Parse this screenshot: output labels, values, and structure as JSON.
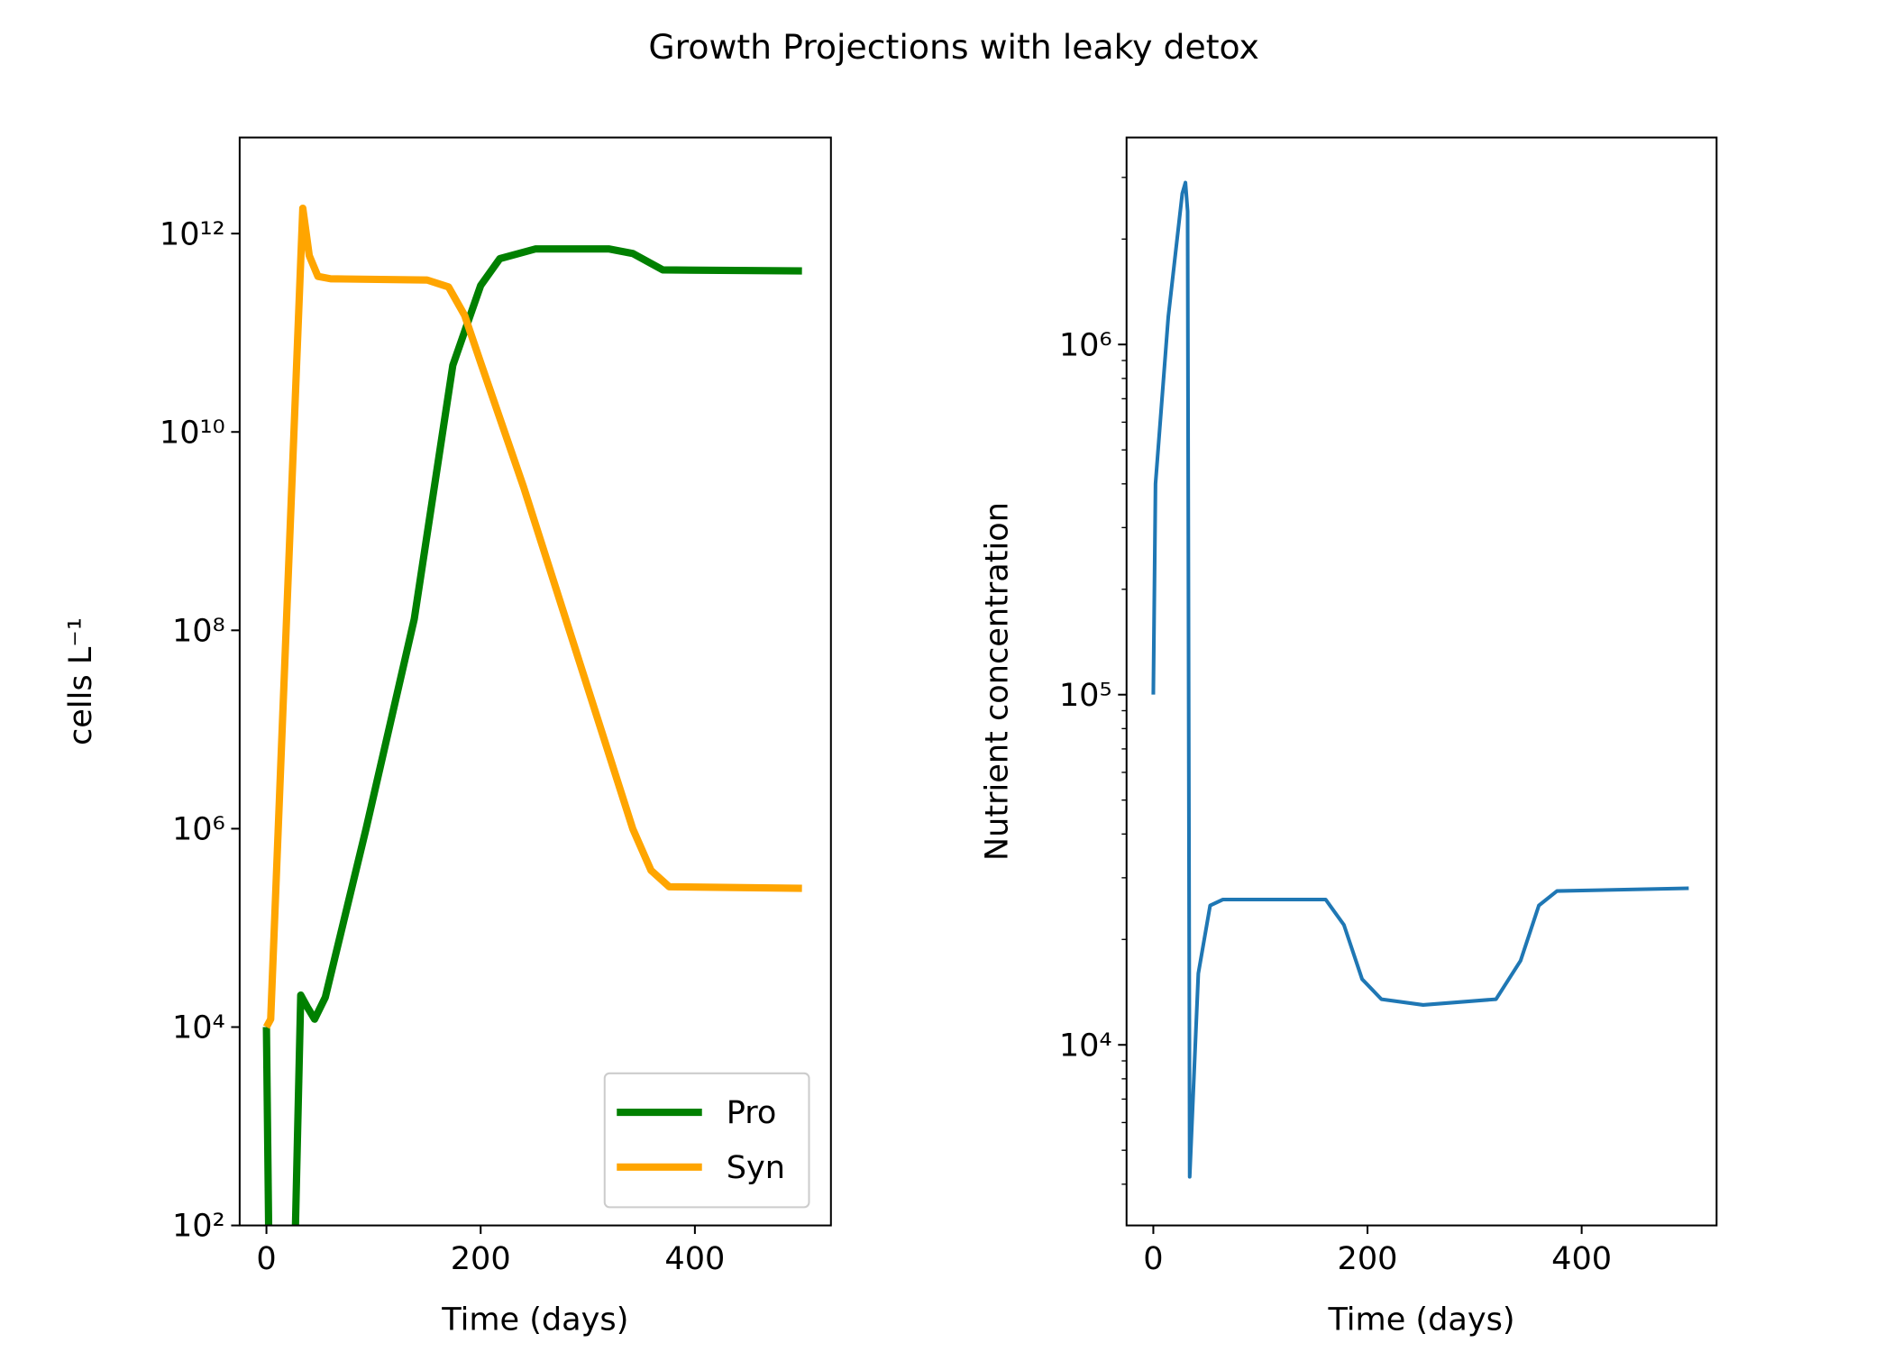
{
  "title": "Growth Projections with leaky detox",
  "chart_data": [
    {
      "type": "line",
      "xlabel": "Time (days)",
      "ylabel": "cells  L⁻¹",
      "yscale": "log",
      "legend": "lower right",
      "xlim": [
        -25,
        527
      ],
      "xticks": [
        0,
        200,
        400
      ],
      "ylim": [
        100,
        9300000000000.0
      ],
      "yticks": [
        {
          "value": 100,
          "label": "10²"
        },
        {
          "value": 10000,
          "label": "10⁴"
        },
        {
          "value": 1000000,
          "label": "10⁶"
        },
        {
          "value": 100000000,
          "label": "10⁸"
        },
        {
          "value": 10000000000,
          "label": "10¹⁰"
        },
        {
          "value": 1000000000000,
          "label": "10¹²"
        }
      ],
      "series": [
        {
          "name": "Pro",
          "color": "#008000",
          "x": [
            0,
            3,
            25,
            32,
            38,
            45,
            55,
            93,
            138,
            174,
            200,
            218,
            251,
            320,
            342,
            370,
            500
          ],
          "values": [
            10000,
            10,
            10,
            21000,
            16000,
            12000,
            20000,
            1000000,
            130000000,
            47000000000,
            300000000000,
            560000000000,
            700000000000,
            700000000000,
            630000000000,
            430000000000,
            420000000000
          ]
        },
        {
          "name": "Syn",
          "color": "#ffa500",
          "x": [
            0,
            4,
            34,
            40,
            48,
            60,
            150,
            170,
            185,
            200,
            240,
            342,
            359,
            376,
            500
          ],
          "values": [
            10000,
            12000,
            1800000000000,
            600000000000,
            370000000000,
            350000000000,
            340000000000,
            290000000000,
            150000000000,
            50000000000,
            2800000000,
            1000000,
            380000,
            260000,
            250000
          ]
        }
      ]
    },
    {
      "type": "line",
      "xlabel": "Time (days)",
      "ylabel": "Nutrient concentration",
      "yscale": "log",
      "xlim": [
        -25,
        526
      ],
      "xticks": [
        0,
        200,
        400
      ],
      "ylim": [
        3050,
        3900000
      ],
      "yticks": [
        {
          "value": 10000,
          "label": "10⁴"
        },
        {
          "value": 100000,
          "label": "10⁵"
        },
        {
          "value": 1000000,
          "label": "10⁶"
        }
      ],
      "yminorticks": [
        4000,
        5000,
        6000,
        7000,
        8000,
        9000,
        20000,
        30000,
        40000,
        50000,
        60000,
        70000,
        80000,
        90000,
        200000,
        300000,
        400000,
        500000,
        600000,
        700000,
        800000,
        900000,
        2000000,
        3000000
      ],
      "series": [
        {
          "color": "#1f77b4",
          "x": [
            0,
            2,
            14,
            27,
            30,
            32,
            34,
            42,
            53,
            65,
            161,
            178,
            195,
            213,
            252,
            320,
            343,
            360,
            377,
            500
          ],
          "values": [
            100000,
            400000,
            1200000,
            2700000,
            2900000,
            2400000,
            4200,
            16000,
            25000,
            26000,
            26000,
            22000,
            15400,
            13500,
            13000,
            13500,
            17400,
            25000,
            27500,
            28000
          ]
        }
      ]
    }
  ]
}
